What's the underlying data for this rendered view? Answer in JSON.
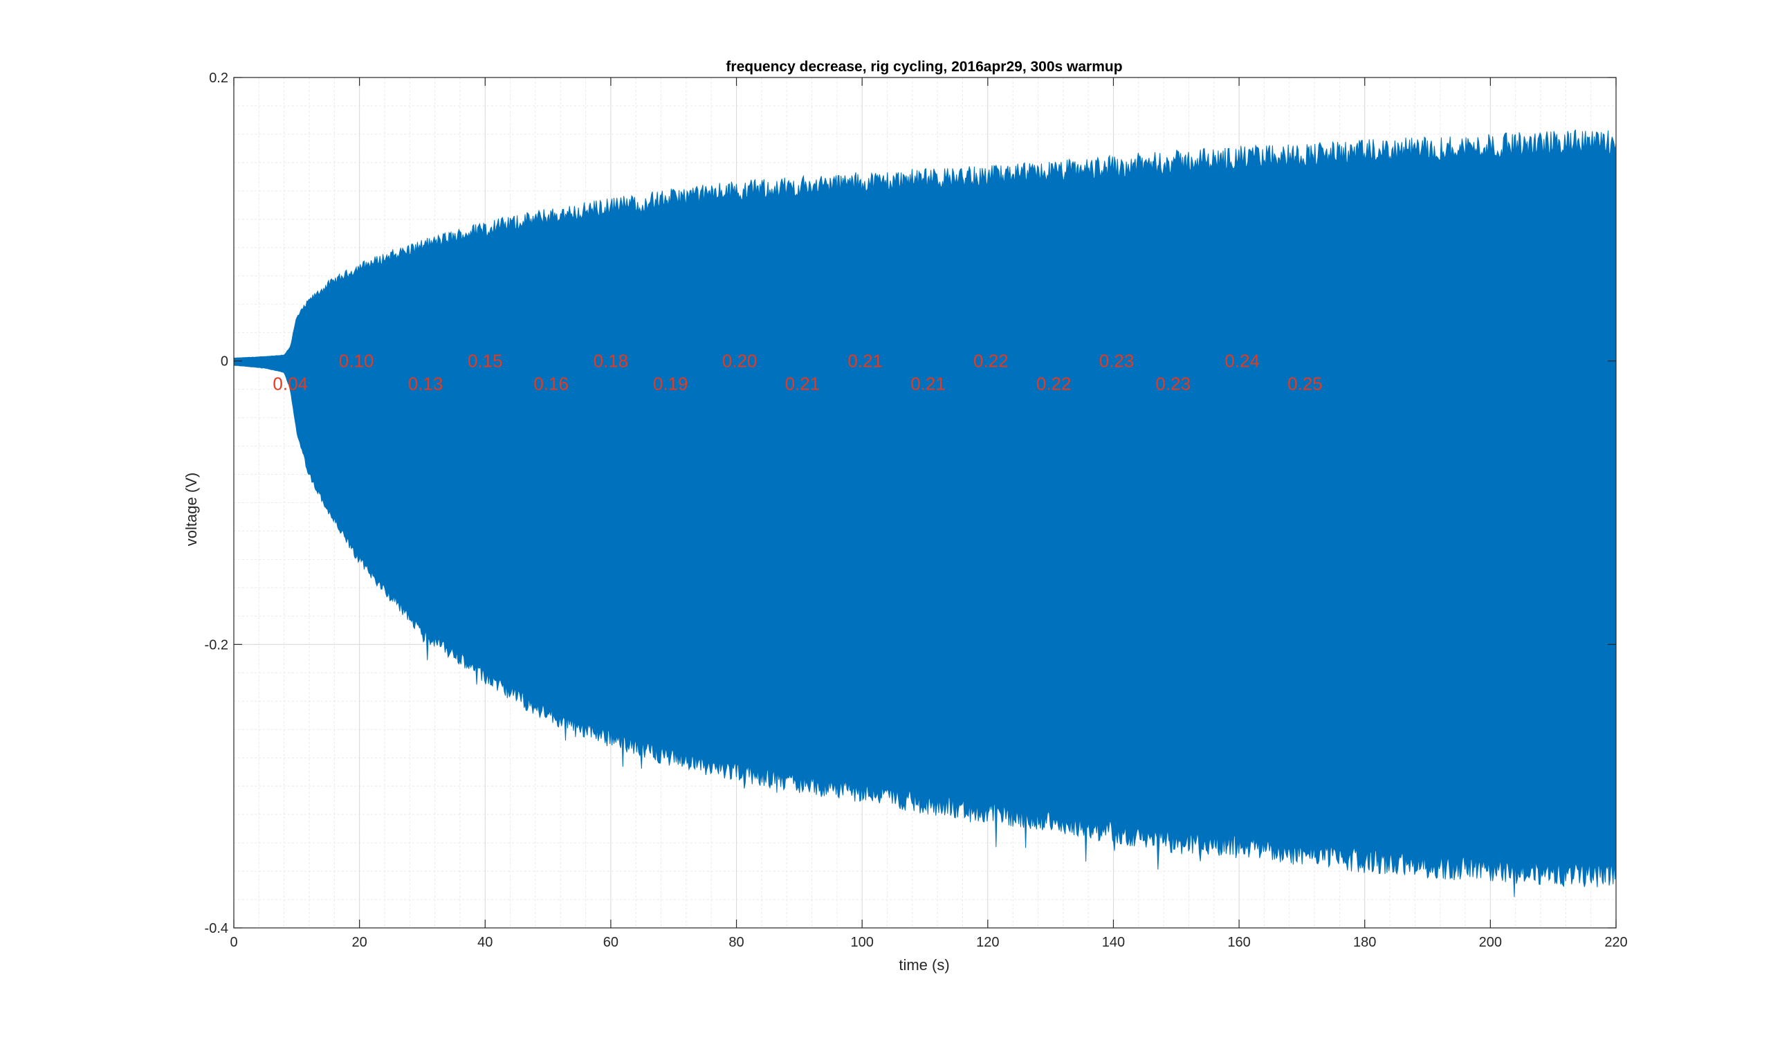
{
  "chart_data": {
    "type": "line",
    "title": "frequency decrease, rig cycling, 2016apr29, 300s warmup",
    "xlabel": "time (s)",
    "ylabel": "voltage (V)",
    "xlim": [
      0,
      220
    ],
    "ylim": [
      -0.4,
      0.2
    ],
    "x_ticks": [
      0,
      20,
      40,
      60,
      80,
      100,
      120,
      140,
      160,
      180,
      200,
      220
    ],
    "x_tick_labels": [
      "0",
      "20",
      "40",
      "60",
      "80",
      "100",
      "120",
      "140",
      "160",
      "180",
      "200",
      "220"
    ],
    "y_ticks": [
      0.2,
      0,
      -0.2,
      -0.4
    ],
    "y_tick_labels": [
      "0.2",
      "0",
      "-0.2",
      "-0.4"
    ],
    "grid": true,
    "minor_grid": true,
    "series_color": "#0072BD",
    "annotation_color": "#E8391C",
    "series": [
      {
        "envelope_upper": {
          "x": [
            0,
            5,
            8,
            9,
            10,
            12,
            15,
            20,
            25,
            30,
            40,
            50,
            60,
            70,
            80,
            90,
            100,
            110,
            120,
            130,
            140,
            150,
            160,
            170,
            180,
            190,
            200,
            210,
            220
          ],
          "y": [
            0.002,
            0.003,
            0.004,
            0.01,
            0.03,
            0.042,
            0.053,
            0.065,
            0.073,
            0.08,
            0.092,
            0.1,
            0.107,
            0.113,
            0.118,
            0.121,
            0.124,
            0.126,
            0.128,
            0.131,
            0.135,
            0.138,
            0.141,
            0.143,
            0.145,
            0.147,
            0.149,
            0.151,
            0.152
          ]
        },
        "envelope_lower": {
          "x": [
            0,
            5,
            8,
            9,
            10,
            12,
            15,
            20,
            25,
            30,
            40,
            50,
            60,
            70,
            80,
            90,
            100,
            110,
            120,
            130,
            140,
            150,
            160,
            170,
            180,
            190,
            200,
            210,
            220
          ],
          "y": [
            -0.003,
            -0.005,
            -0.008,
            -0.02,
            -0.05,
            -0.08,
            -0.105,
            -0.14,
            -0.165,
            -0.19,
            -0.222,
            -0.248,
            -0.265,
            -0.278,
            -0.288,
            -0.296,
            -0.302,
            -0.31,
            -0.316,
            -0.322,
            -0.33,
            -0.337,
            -0.34,
            -0.345,
            -0.35,
            -0.354,
            -0.357,
            -0.359,
            -0.36
          ]
        }
      }
    ],
    "annotations": [
      {
        "text": "0.04",
        "x": 9,
        "y": -0.016
      },
      {
        "text": "0.10",
        "x": 19.5,
        "y": 0
      },
      {
        "text": "0.13",
        "x": 30.5,
        "y": -0.016
      },
      {
        "text": "0.15",
        "x": 40,
        "y": 0
      },
      {
        "text": "0.16",
        "x": 50.5,
        "y": -0.016
      },
      {
        "text": "0.18",
        "x": 60,
        "y": 0
      },
      {
        "text": "0.19",
        "x": 69.5,
        "y": -0.016
      },
      {
        "text": "0.20",
        "x": 80.5,
        "y": 0
      },
      {
        "text": "0.21",
        "x": 90.5,
        "y": -0.016
      },
      {
        "text": "0.21",
        "x": 100.5,
        "y": 0
      },
      {
        "text": "0.21",
        "x": 110.5,
        "y": -0.016
      },
      {
        "text": "0.22",
        "x": 120.5,
        "y": 0
      },
      {
        "text": "0.22",
        "x": 130.5,
        "y": -0.016
      },
      {
        "text": "0.23",
        "x": 140.5,
        "y": 0
      },
      {
        "text": "0.23",
        "x": 149.5,
        "y": -0.016
      },
      {
        "text": "0.24",
        "x": 160.5,
        "y": 0
      },
      {
        "text": "0.25",
        "x": 170.5,
        "y": -0.016
      }
    ]
  }
}
